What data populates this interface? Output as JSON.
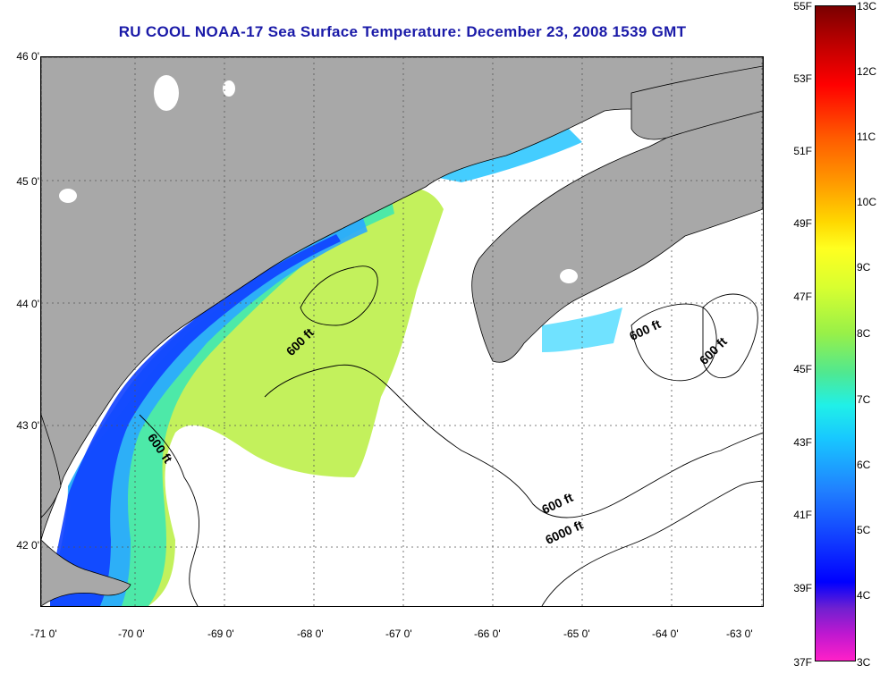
{
  "title": "RU COOL  NOAA-17  Sea Surface Temperature:  December 23, 2008 1539 GMT",
  "lat_labels": [
    "46 0'",
    "45 0'",
    "44 0'",
    "43 0'",
    "42 0'"
  ],
  "lon_labels": [
    "-71 0'",
    "-70 0'",
    "-69 0'",
    "-68 0'",
    "-67 0'",
    "-66 0'",
    "-65 0'",
    "-64 0'",
    "-63 0'"
  ],
  "depth_labels": [
    "600 ft",
    "600 ft",
    "600 ft",
    "600 ft",
    "6000 ft",
    "600 ft"
  ],
  "colorbar": {
    "fahrenheit": [
      "55F",
      "53F",
      "51F",
      "49F",
      "47F",
      "45F",
      "43F",
      "41F",
      "39F",
      "37F"
    ],
    "celsius": [
      "13C",
      "12C",
      "11C",
      "10C",
      "9C",
      "8C",
      "7C",
      "6C",
      "5C",
      "4C",
      "3C"
    ]
  },
  "colors": {
    "land": "#a8a8a8",
    "title": "#1a1aa8",
    "grid": "#555555"
  }
}
